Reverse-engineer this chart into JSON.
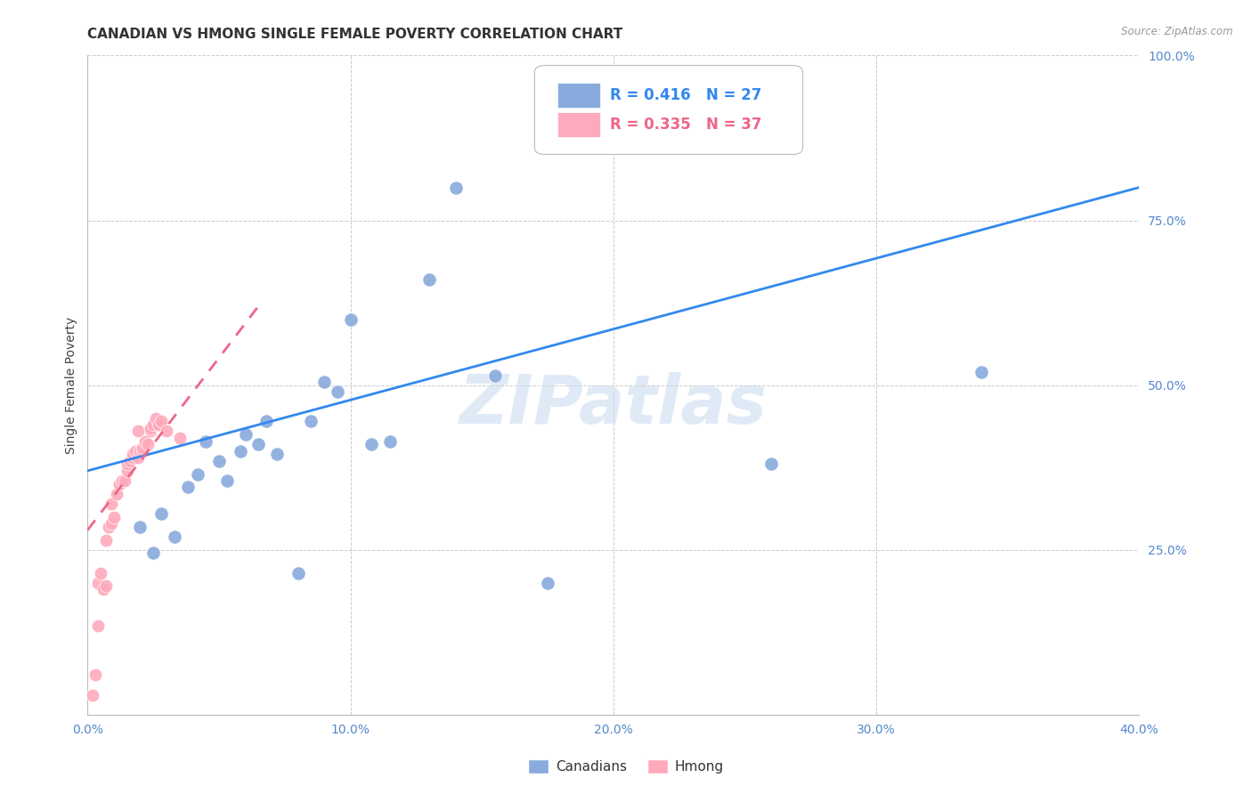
{
  "title": "CANADIAN VS HMONG SINGLE FEMALE POVERTY CORRELATION CHART",
  "source": "Source: ZipAtlas.com",
  "ylabel": "Single Female Poverty",
  "xlim": [
    0.0,
    0.4
  ],
  "ylim": [
    0.0,
    1.0
  ],
  "xtick_labels": [
    "0.0%",
    "10.0%",
    "20.0%",
    "30.0%",
    "40.0%"
  ],
  "xtick_values": [
    0.0,
    0.1,
    0.2,
    0.3,
    0.4
  ],
  "ytick_labels": [
    "25.0%",
    "50.0%",
    "75.0%",
    "100.0%"
  ],
  "ytick_values": [
    0.25,
    0.5,
    0.75,
    1.0
  ],
  "grid_color": "#cccccc",
  "watermark": "ZIPatlas",
  "canadians_r": 0.416,
  "canadians_n": 27,
  "hmong_r": 0.335,
  "hmong_n": 37,
  "canadians_color": "#88aadd",
  "hmong_color": "#ffaabc",
  "trend_canadian_color": "#3388ee",
  "trend_hmong_color": "#ee6688",
  "canadians_x": [
    0.02,
    0.025,
    0.028,
    0.033,
    0.038,
    0.042,
    0.045,
    0.05,
    0.053,
    0.058,
    0.06,
    0.065,
    0.068,
    0.072,
    0.08,
    0.085,
    0.09,
    0.095,
    0.1,
    0.108,
    0.115,
    0.13,
    0.14,
    0.155,
    0.175,
    0.26,
    0.34
  ],
  "canadians_y": [
    0.285,
    0.245,
    0.305,
    0.27,
    0.345,
    0.365,
    0.415,
    0.385,
    0.355,
    0.4,
    0.425,
    0.41,
    0.445,
    0.395,
    0.215,
    0.445,
    0.505,
    0.49,
    0.6,
    0.41,
    0.415,
    0.66,
    0.8,
    0.515,
    0.2,
    0.38,
    0.52
  ],
  "hmong_x": [
    0.002,
    0.003,
    0.004,
    0.004,
    0.005,
    0.006,
    0.007,
    0.007,
    0.008,
    0.009,
    0.009,
    0.01,
    0.011,
    0.012,
    0.013,
    0.014,
    0.015,
    0.015,
    0.016,
    0.017,
    0.017,
    0.018,
    0.019,
    0.019,
    0.02,
    0.021,
    0.021,
    0.022,
    0.023,
    0.024,
    0.024,
    0.025,
    0.026,
    0.027,
    0.028,
    0.03,
    0.035
  ],
  "hmong_y": [
    0.03,
    0.06,
    0.135,
    0.2,
    0.215,
    0.19,
    0.195,
    0.265,
    0.285,
    0.29,
    0.32,
    0.3,
    0.335,
    0.35,
    0.355,
    0.355,
    0.37,
    0.38,
    0.385,
    0.39,
    0.395,
    0.4,
    0.39,
    0.43,
    0.4,
    0.4,
    0.405,
    0.415,
    0.41,
    0.43,
    0.435,
    0.44,
    0.45,
    0.44,
    0.445,
    0.43,
    0.42
  ],
  "canadian_trend_x0": 0.0,
  "canadian_trend_y0": 0.37,
  "canadian_trend_x1": 0.4,
  "canadian_trend_y1": 0.8,
  "hmong_trend_x0": 0.0,
  "hmong_trend_y0": 0.28,
  "hmong_trend_x1": 0.065,
  "hmong_trend_y1": 0.62,
  "background_color": "#ffffff",
  "title_fontsize": 11,
  "axis_label_fontsize": 10,
  "tick_fontsize": 10,
  "watermark_fontsize": 55,
  "watermark_color": "#ccddf0",
  "watermark_alpha": 0.6
}
